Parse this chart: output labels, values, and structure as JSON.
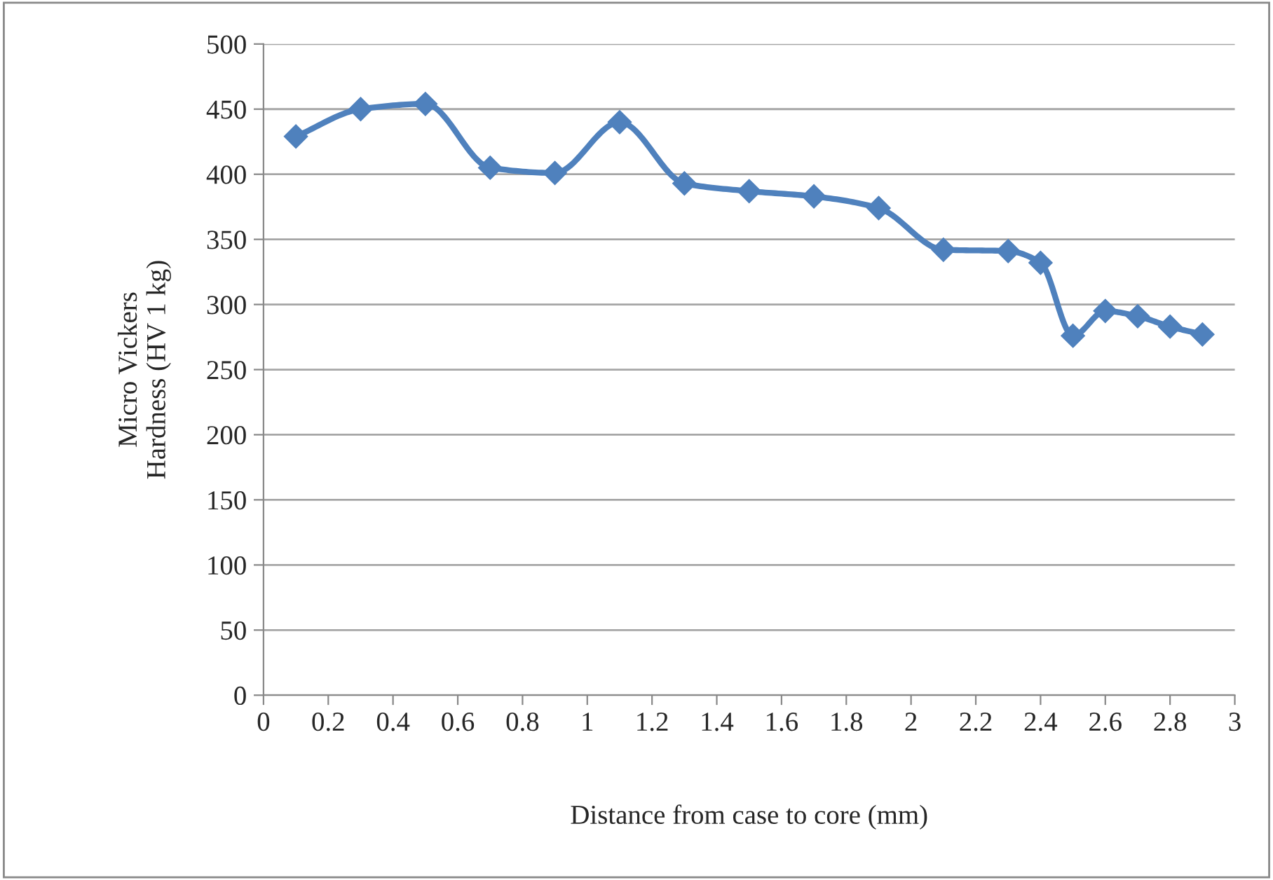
{
  "chart_data": {
    "type": "line",
    "xlabel": "Distance from case to core (mm)",
    "ylabel": "Micro Vickers\nHardness (HV 1 kg)",
    "x": [
      0.1,
      0.3,
      0.5,
      0.7,
      0.9,
      1.1,
      1.3,
      1.5,
      1.7,
      1.9,
      2.1,
      2.3,
      2.4,
      2.5,
      2.6,
      2.7,
      2.8,
      2.9
    ],
    "series": [
      {
        "color": "#4f81bd",
        "values": [
          429,
          450,
          454,
          405,
          401,
          440,
          393,
          387,
          383,
          374,
          342,
          341,
          332,
          276,
          295,
          291,
          283,
          277
        ]
      }
    ],
    "xlim": [
      0,
      3
    ],
    "xticks": [
      0,
      0.2,
      0.4,
      0.6,
      0.8,
      1,
      1.2,
      1.4,
      1.6,
      1.8,
      2,
      2.2,
      2.4,
      2.6,
      2.8,
      3
    ],
    "ylim": [
      0,
      500
    ],
    "yticks": [
      0,
      50,
      100,
      150,
      200,
      250,
      300,
      350,
      400,
      450,
      500
    ],
    "grid": "y",
    "marker": "diamond",
    "line_style": "solid",
    "legend": false
  }
}
